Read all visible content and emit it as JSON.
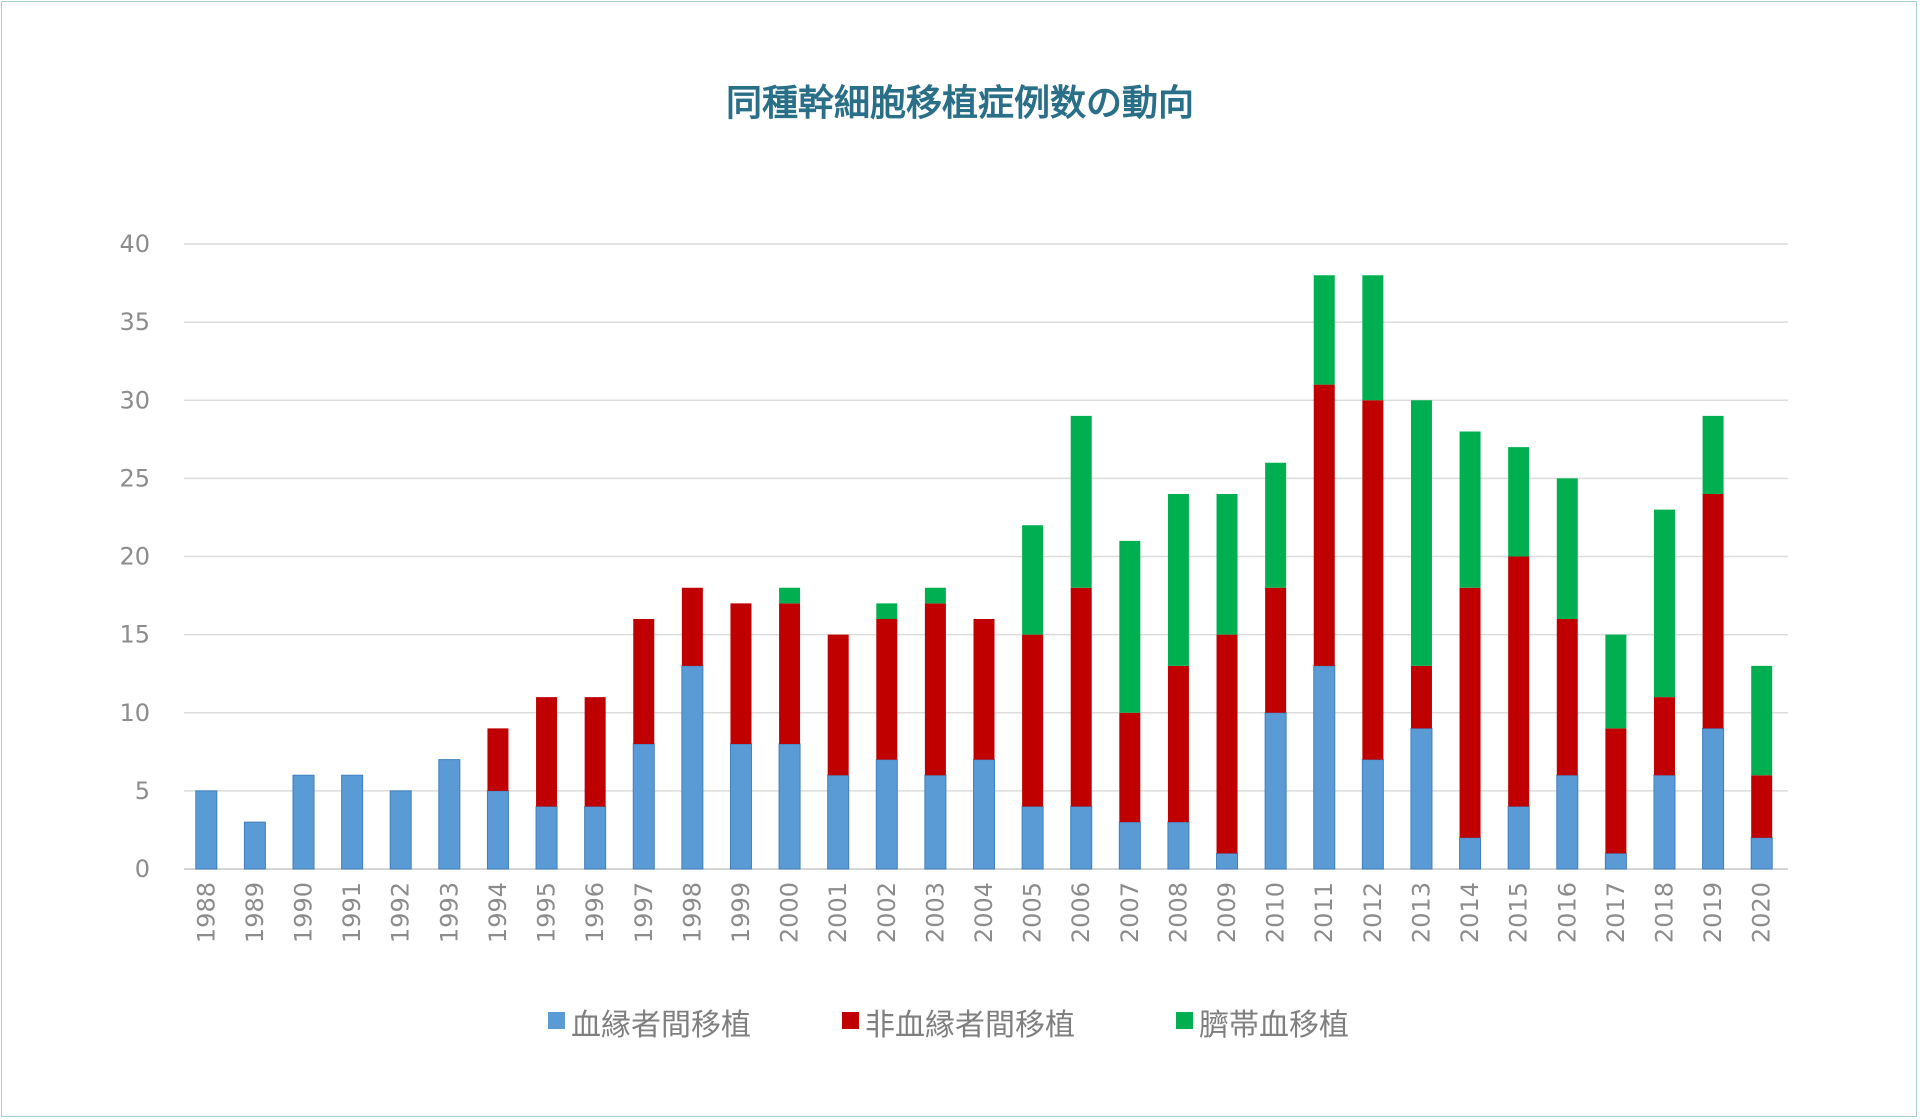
{
  "chart_data": {
    "type": "bar",
    "stacked": true,
    "title": "同種幹細胞移植症例数の動向",
    "xlabel": "",
    "ylabel": "",
    "ylim": [
      0,
      40
    ],
    "yticks": [
      0,
      5,
      10,
      15,
      20,
      25,
      30,
      35,
      40
    ],
    "grid": true,
    "legend_position": "bottom",
    "categories": [
      "1988",
      "1989",
      "1990",
      "1991",
      "1992",
      "1993",
      "1994",
      "1995",
      "1996",
      "1997",
      "1998",
      "1999",
      "2000",
      "2001",
      "2002",
      "2003",
      "2004",
      "2005",
      "2006",
      "2007",
      "2008",
      "2009",
      "2010",
      "2011",
      "2012",
      "2013",
      "2014",
      "2015",
      "2016",
      "2017",
      "2018",
      "2019",
      "2020"
    ],
    "series": [
      {
        "name": "血縁者間移植",
        "color": "#5b9bd5",
        "values": [
          5,
          3,
          6,
          6,
          5,
          7,
          5,
          4,
          4,
          8,
          13,
          8,
          8,
          6,
          7,
          6,
          7,
          4,
          4,
          3,
          3,
          1,
          10,
          13,
          7,
          9,
          2,
          4,
          6,
          1,
          6,
          9,
          2
        ]
      },
      {
        "name": "非血縁者間移植",
        "color": "#c00000",
        "values": [
          0,
          0,
          0,
          0,
          0,
          0,
          4,
          7,
          7,
          8,
          5,
          9,
          9,
          9,
          9,
          11,
          9,
          11,
          14,
          7,
          10,
          14,
          8,
          18,
          23,
          4,
          16,
          16,
          10,
          8,
          5,
          15,
          4
        ]
      },
      {
        "name": "臍帯血移植",
        "color": "#00b050",
        "values": [
          0,
          0,
          0,
          0,
          0,
          0,
          0,
          0,
          0,
          0,
          0,
          0,
          1,
          0,
          1,
          1,
          0,
          7,
          11,
          11,
          11,
          9,
          8,
          7,
          8,
          17,
          10,
          7,
          9,
          6,
          12,
          5,
          7
        ]
      }
    ]
  }
}
